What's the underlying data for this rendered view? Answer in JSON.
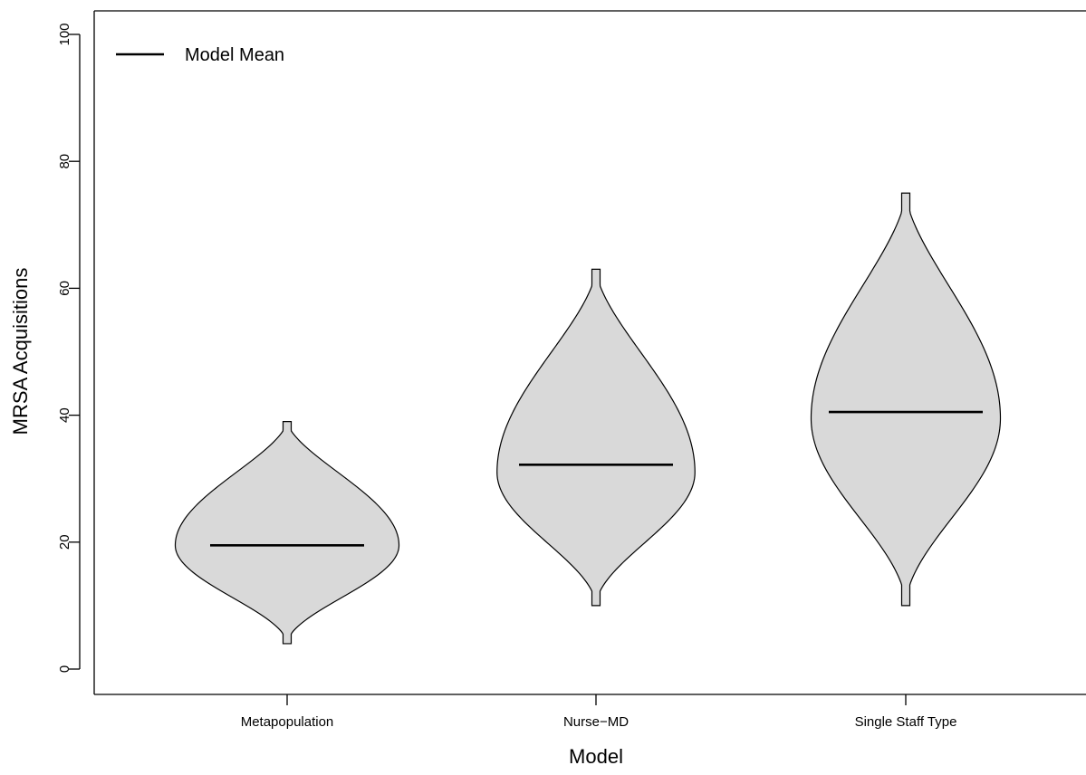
{
  "chart_data": {
    "type": "violin",
    "title": "",
    "xlabel": "Model",
    "ylabel": "MRSA Acquisitions",
    "ylim": [
      0,
      100
    ],
    "y_ticks": [
      "0",
      "20",
      "40",
      "60",
      "80",
      "100"
    ],
    "categories": [
      "Metapopulation",
      "Nurse−MD",
      "Single Staff Type"
    ],
    "series": [
      {
        "category": "Metapopulation",
        "min": 4,
        "max": 39,
        "mode": 19.5,
        "mean": 19.5
      },
      {
        "category": "Nurse−MD",
        "min": 10,
        "max": 63,
        "mode": 31,
        "mean": 32.2
      },
      {
        "category": "Single Staff Type",
        "min": 10,
        "max": 75,
        "mode": 39.5,
        "mean": 40.5
      }
    ],
    "legend": {
      "position": "top-left",
      "entries": [
        {
          "label": "Model Mean",
          "style": "line"
        }
      ]
    },
    "grid": false,
    "colors": {
      "violin_fill": "#d9d9d9",
      "stroke": "#000000"
    }
  }
}
